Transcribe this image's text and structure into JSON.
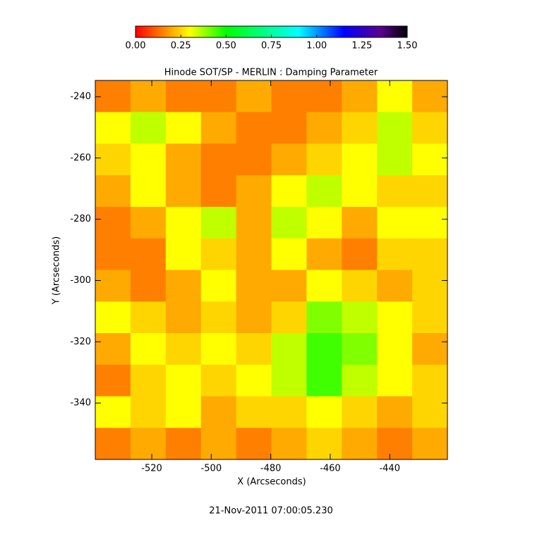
{
  "chart_data": {
    "type": "heatmap",
    "title": "Hinode SOT/SP - MERLIN : Damping Parameter",
    "xlabel": "X (Arcseconds)",
    "ylabel": "Y (Arcseconds)",
    "footer": "21-Nov-2011 07:00:05.230",
    "xlim": [
      -539,
      -420.6
    ],
    "ylim": [
      -358.4,
      -234.7
    ],
    "xticks": [
      -520,
      -500,
      -480,
      -460,
      -440
    ],
    "yticks": [
      -240,
      -260,
      -280,
      -300,
      -320,
      -340
    ],
    "zlim": [
      0,
      1.5
    ],
    "zticks": [
      {
        "value": 0,
        "label": "0.00"
      },
      {
        "value": 0.25,
        "label": "0.25"
      },
      {
        "value": 0.5,
        "label": "0.50"
      },
      {
        "value": 0.75,
        "label": "0.75"
      },
      {
        "value": 1,
        "label": "1.00"
      },
      {
        "value": 1.25,
        "label": "1.25"
      },
      {
        "value": 1.5,
        "label": "1.50"
      }
    ],
    "colorscale": [
      [
        0,
        "#ff0000"
      ],
      [
        0.15,
        "#ff8000"
      ],
      [
        0.3,
        "#ffff00"
      ],
      [
        0.5,
        "#00ff00"
      ],
      [
        0.9,
        "#00ffff"
      ],
      [
        1.15,
        "#0000ff"
      ],
      [
        1.35,
        "#5a0090"
      ],
      [
        1.5,
        "#000000"
      ]
    ],
    "z": [
      [
        0.15,
        0.2,
        0.15,
        0.15,
        0.2,
        0.15,
        0.15,
        0.2,
        0.3,
        0.2
      ],
      [
        0.3,
        0.35,
        0.3,
        0.2,
        0.15,
        0.15,
        0.2,
        0.25,
        0.35,
        0.25
      ],
      [
        0.25,
        0.3,
        0.2,
        0.15,
        0.15,
        0.2,
        0.25,
        0.3,
        0.35,
        0.3
      ],
      [
        0.2,
        0.3,
        0.2,
        0.15,
        0.2,
        0.3,
        0.35,
        0.3,
        0.25,
        0.25
      ],
      [
        0.15,
        0.2,
        0.3,
        0.35,
        0.2,
        0.35,
        0.3,
        0.2,
        0.3,
        0.3
      ],
      [
        0.15,
        0.15,
        0.3,
        0.25,
        0.2,
        0.3,
        0.2,
        0.15,
        0.25,
        0.25
      ],
      [
        0.2,
        0.15,
        0.2,
        0.3,
        0.2,
        0.2,
        0.3,
        0.25,
        0.2,
        0.25
      ],
      [
        0.3,
        0.25,
        0.2,
        0.25,
        0.2,
        0.25,
        0.4,
        0.35,
        0.3,
        0.25
      ],
      [
        0.2,
        0.3,
        0.25,
        0.3,
        0.25,
        0.35,
        0.45,
        0.4,
        0.3,
        0.2
      ],
      [
        0.15,
        0.25,
        0.3,
        0.25,
        0.3,
        0.35,
        0.45,
        0.35,
        0.3,
        0.25
      ],
      [
        0.3,
        0.25,
        0.3,
        0.2,
        0.25,
        0.25,
        0.3,
        0.25,
        0.2,
        0.25
      ],
      [
        0.15,
        0.2,
        0.15,
        0.2,
        0.15,
        0.2,
        0.25,
        0.2,
        0.15,
        0.2
      ]
    ]
  }
}
